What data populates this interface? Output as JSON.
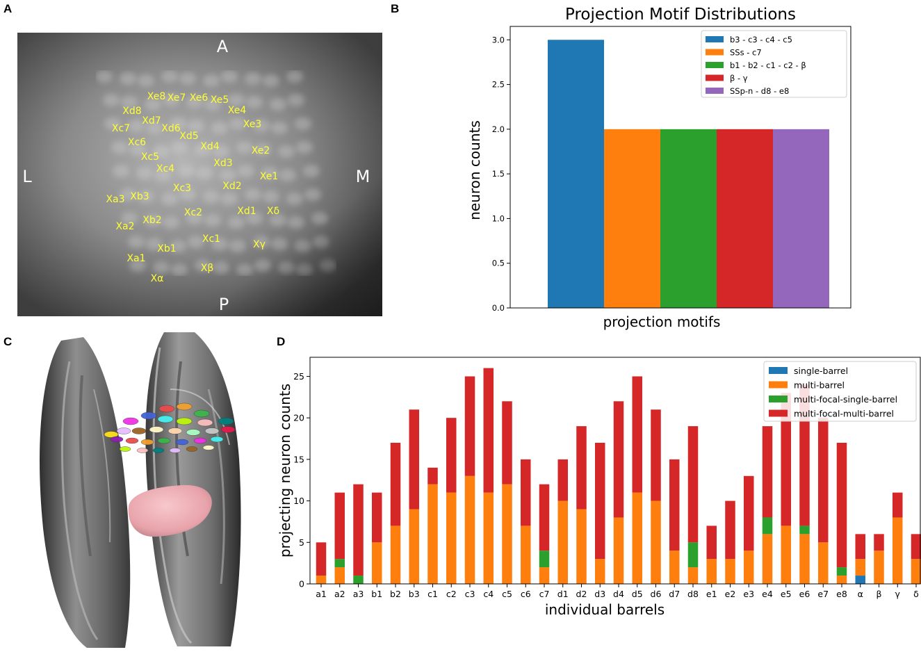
{
  "panels": {
    "a": {
      "label": "A",
      "orientation": {
        "top": "A",
        "bottom": "P",
        "left": "L",
        "right": "M"
      },
      "barrel_labels": [
        "Xe8",
        "Xe7",
        "Xe6",
        "Xe5",
        "Xd8",
        "Xe4",
        "Xd7",
        "Xc7",
        "Xd6",
        "Xe3",
        "Xd5",
        "Xc6",
        "Xd4",
        "Xe2",
        "Xc5",
        "Xd3",
        "Xc4",
        "Xe1",
        "Xc3",
        "Xd2",
        "Xa3",
        "Xb3",
        "Xc2",
        "Xd1",
        "Xδ",
        "Xb2",
        "Xa2",
        "Xc1",
        "Xγ",
        "Xb1",
        "Xa1",
        "Xβ",
        "Xα"
      ]
    },
    "b": {
      "label": "B"
    },
    "c": {
      "label": "C"
    },
    "d": {
      "label": "D"
    }
  },
  "chart_data": [
    {
      "type": "bar",
      "panel": "B",
      "title": "Projection Motif Distributions",
      "xlabel": "projection motifs",
      "ylabel": "neuron counts",
      "ylim": [
        0,
        3.15
      ],
      "yticks": [
        "0.0",
        "0.5",
        "1.0",
        "1.5",
        "2.0",
        "2.5",
        "3.0"
      ],
      "ytick_values": [
        0,
        0.5,
        1.0,
        1.5,
        2.0,
        2.5,
        3.0
      ],
      "legend_position": "top-right",
      "series": [
        {
          "name": "b3 -  c3  -  c4  -  c5",
          "value": 3,
          "color": "#1f77b4"
        },
        {
          "name": "SSs -  c7",
          "value": 2,
          "color": "#ff7f0e"
        },
        {
          "name": "b1 -  b2 -  c1  -  c2  -  β",
          "value": 2,
          "color": "#2ca02c"
        },
        {
          "name": "β -  γ",
          "value": 2,
          "color": "#d62728"
        },
        {
          "name": "SSp-n -  d8  -  e8",
          "value": 2,
          "color": "#9467bd"
        }
      ]
    },
    {
      "type": "bar",
      "stacked": true,
      "panel": "D",
      "title": "",
      "xlabel": "individual barrels",
      "ylabel": "projecting neuron counts",
      "ylim": [
        0,
        27.3
      ],
      "yticks": [
        "0",
        "5",
        "10",
        "15",
        "20",
        "25"
      ],
      "ytick_values": [
        0,
        5,
        10,
        15,
        20,
        25
      ],
      "legend_position": "top-right",
      "categories": [
        "a1",
        "a2",
        "a3",
        "b1",
        "b2",
        "b3",
        "c1",
        "c2",
        "c3",
        "c4",
        "c5",
        "c6",
        "c7",
        "d1",
        "d2",
        "d3",
        "d4",
        "d5",
        "d6",
        "d7",
        "d8",
        "e1",
        "e2",
        "e3",
        "e4",
        "e5",
        "e6",
        "e7",
        "e8",
        "α",
        "β",
        "γ",
        "δ"
      ],
      "series": [
        {
          "name": "single-barrel",
          "color": "#1f77b4",
          "values": [
            0,
            0,
            0,
            0,
            0,
            0,
            0,
            0,
            0,
            0,
            0,
            0,
            0,
            0,
            0,
            0,
            0,
            0,
            0,
            0,
            0,
            0,
            0,
            0,
            0,
            0,
            0,
            0,
            0,
            1,
            0,
            0,
            0
          ]
        },
        {
          "name": "multi-barrel",
          "color": "#ff7f0e",
          "values": [
            1,
            2,
            0,
            5,
            7,
            9,
            12,
            11,
            13,
            11,
            12,
            7,
            2,
            10,
            9,
            3,
            8,
            11,
            10,
            4,
            2,
            3,
            3,
            4,
            6,
            7,
            6,
            5,
            1,
            2,
            4,
            8,
            3
          ]
        },
        {
          "name": "multi-focal-single-barrel",
          "color": "#2ca02c",
          "values": [
            0,
            1,
            1,
            0,
            0,
            0,
            0,
            0,
            0,
            0,
            0,
            0,
            2,
            0,
            0,
            0,
            0,
            0,
            0,
            0,
            3,
            0,
            0,
            0,
            2,
            0,
            1,
            0,
            1,
            0,
            0,
            0,
            0
          ]
        },
        {
          "name": "multi-focal-multi-barrel",
          "color": "#d62728",
          "values": [
            4,
            8,
            11,
            6,
            10,
            12,
            2,
            9,
            12,
            15,
            10,
            8,
            8,
            5,
            10,
            14,
            14,
            14,
            11,
            11,
            14,
            4,
            7,
            9,
            11,
            16,
            17,
            15,
            15,
            3,
            2,
            3,
            3
          ]
        }
      ]
    }
  ]
}
